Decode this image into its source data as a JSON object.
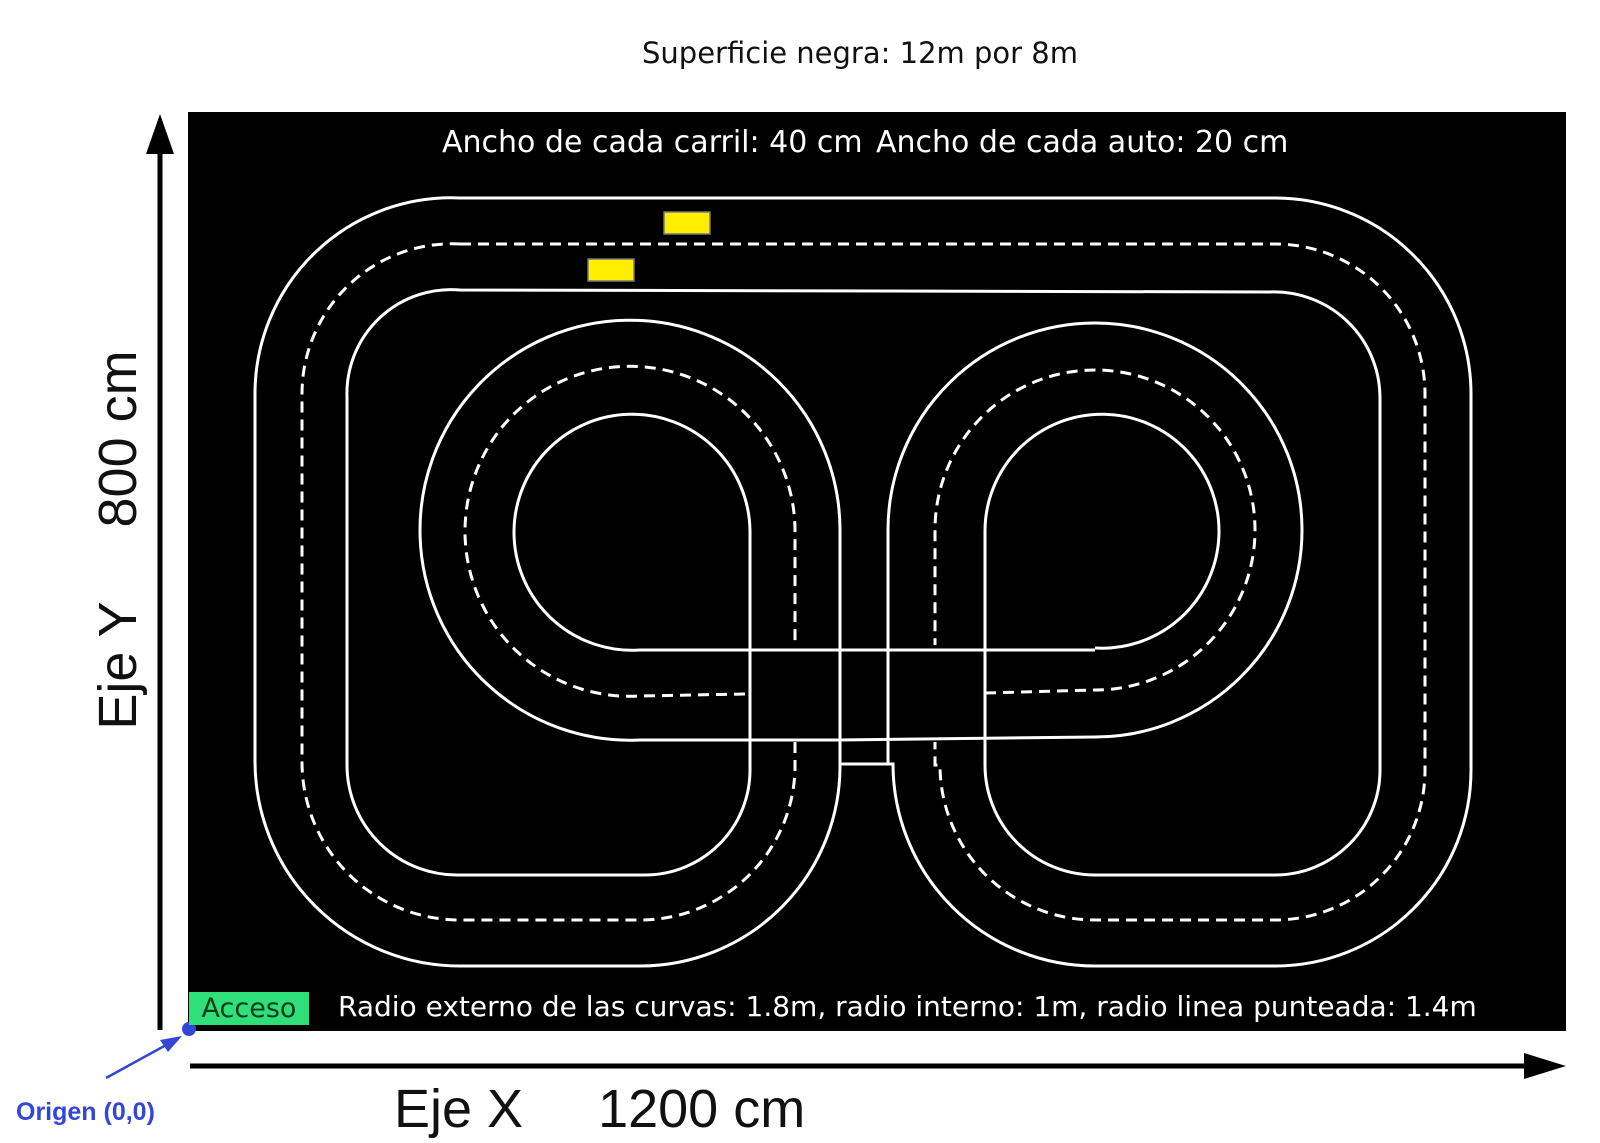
{
  "title": "Superficie negra: 12m por 8m",
  "board": {
    "lane_width_label": "Ancho de cada carril: 40 cm",
    "car_width_label": "Ancho de cada auto: 20 cm",
    "radii_label": "Radio externo de las curvas: 1.8m, radio interno: 1m, radio linea punteada: 1.4m",
    "access_label": "Acceso",
    "surface_color": "#000000",
    "line_color": "#ffffff",
    "car_color": "#ffee00",
    "access_color": "#2fe07a"
  },
  "axes": {
    "x_label": "Eje X     1200 cm",
    "y_label": "Eje Y     800 cm",
    "origin_label": "Origen (0,0)",
    "origin_color": "#3346d8"
  }
}
